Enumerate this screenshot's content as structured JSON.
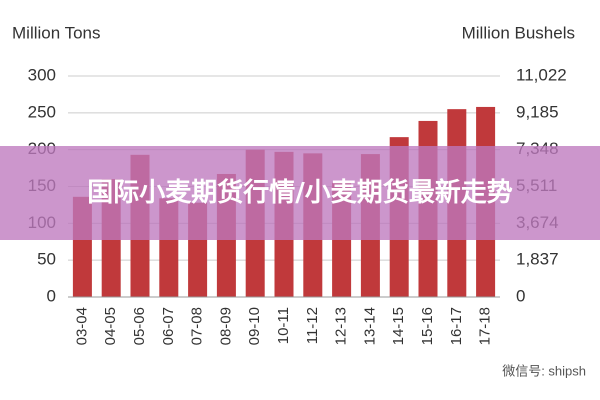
{
  "chart_data": {
    "type": "bar",
    "y_label": "Million Tons",
    "y2_label": "Million Bushels",
    "categories": [
      "03-04",
      "04-05",
      "05-06",
      "06-07",
      "07-08",
      "08-09",
      "09-10",
      "10-11",
      "11-12",
      "12-13",
      "13-14",
      "14-15",
      "15-16",
      "16-17",
      "17-18"
    ],
    "values": [
      136,
      160,
      193,
      134,
      128,
      167,
      200,
      197,
      195,
      155,
      194,
      217,
      239,
      255,
      258
    ],
    "color": "#c0393b",
    "ylim": [
      0,
      300
    ],
    "yticks": [
      0,
      50,
      100,
      150,
      200,
      250,
      300
    ],
    "y2lim": [
      0,
      11022
    ],
    "y2ticks": [
      0,
      {
        "value": 1837,
        "label": "1,837"
      },
      {
        "value": 3674,
        "label": "3,674"
      },
      {
        "value": 5511,
        "label": "5,511"
      },
      {
        "value": 7348,
        "label": "7,348"
      },
      {
        "value": 9185,
        "label": "9,185"
      },
      {
        "value": 11022,
        "label": "11,022"
      }
    ],
    "grid": true
  },
  "overlay": {
    "title": "国际小麦期货行情/小麦期货最新走势",
    "watermark": "微信号: shipsh"
  }
}
